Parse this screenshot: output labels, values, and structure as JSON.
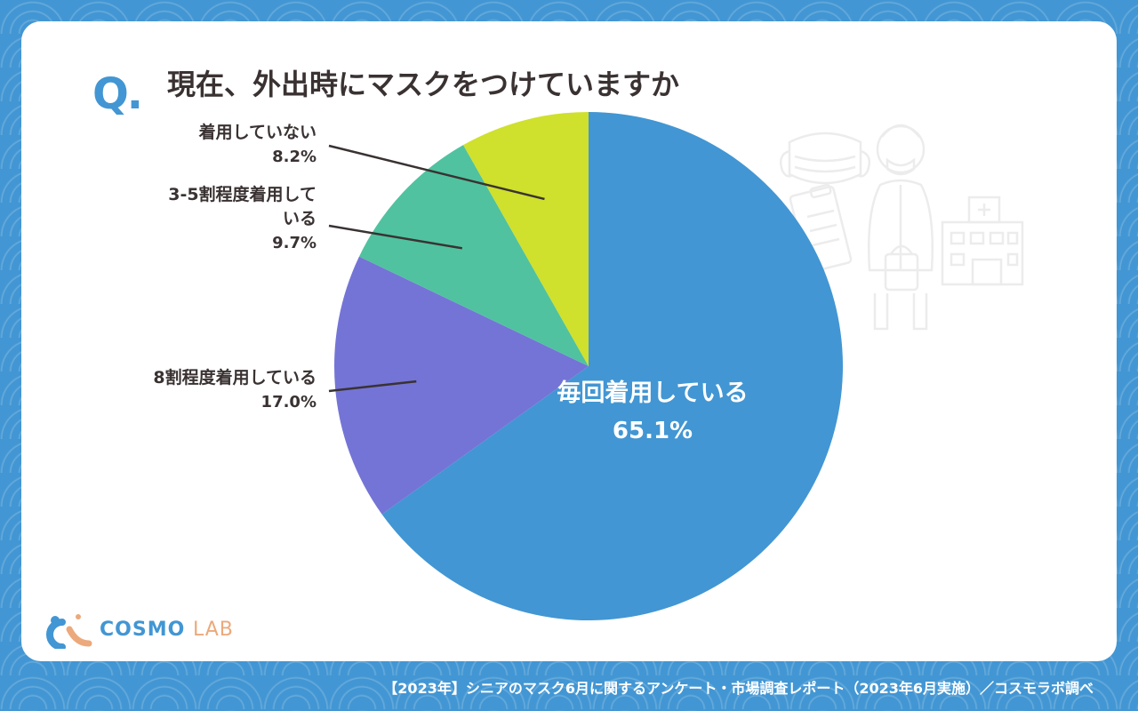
{
  "question": {
    "mark": "Q.",
    "text": "現在、外出時にマスクをつけていますか"
  },
  "chart_data": {
    "type": "pie",
    "title": "現在、外出時にマスクをつけていますか",
    "unit": "%",
    "start_angle_deg": 0,
    "direction": "clockwise",
    "slices": [
      {
        "label": "毎回着用している",
        "value": 65.1,
        "value_label": "65.1%",
        "color": "#4296d3",
        "label_position": "inside"
      },
      {
        "label": "8割程度着用している",
        "value": 17.0,
        "value_label": "17.0%",
        "color": "#7474d6",
        "label_position": "outside-left"
      },
      {
        "label_lines": [
          "3-5割程度着用して",
          "いる"
        ],
        "label": "3-5割程度着用している",
        "value": 9.7,
        "value_label": "9.7%",
        "color": "#50c29f",
        "label_position": "outside-left"
      },
      {
        "label": "着用していない",
        "value": 8.2,
        "value_label": "8.2%",
        "color": "#cfe02d",
        "label_position": "outside-left"
      }
    ]
  },
  "illustration": {
    "icons": [
      "mask-icon",
      "clipboard-icon",
      "senior-woman-icon",
      "hospital-icon"
    ]
  },
  "logo": {
    "text_part1": "COSMO",
    "text_part2": "LAB",
    "colors": {
      "part1": "#4296d3",
      "part2": "#eca97b"
    }
  },
  "footer": {
    "source": "【2023年】シニアのマスク6月に関するアンケート・市場調査レポート（2023年6月実施）／コスモラボ調べ"
  }
}
